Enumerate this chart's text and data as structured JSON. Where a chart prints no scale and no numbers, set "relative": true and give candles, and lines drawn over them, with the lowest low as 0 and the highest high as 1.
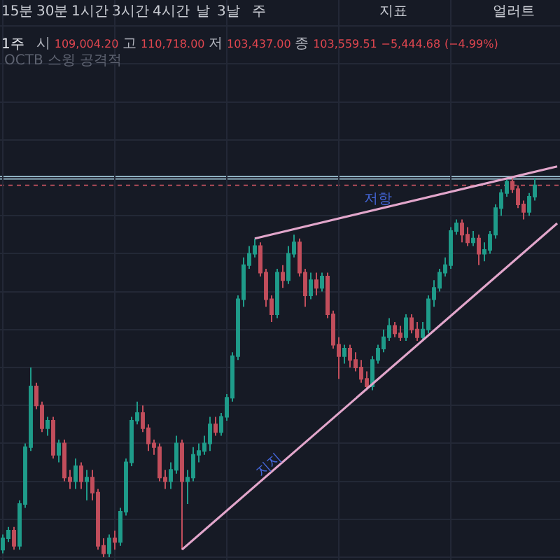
{
  "chart_data": {
    "type": "candlestick",
    "title": "1주",
    "subtitle": "시 109,004.20 고 110,718.00 저 103,437.00 종 103,559.51 −5,444.68 (−4.99%)",
    "annotations": [
      "15분",
      "30분",
      "1시간",
      "3시간",
      "4시간",
      "날",
      "3날",
      "주",
      "지표",
      "얼러트",
      "OCTB 스윙 공격적",
      "저항",
      "지지"
    ],
    "categories": [
      null,
      null,
      null,
      null,
      null,
      null,
      null,
      null,
      null,
      null,
      null,
      null,
      null,
      null,
      null,
      null,
      null,
      null,
      null,
      null,
      null,
      null,
      null,
      null,
      null,
      null,
      null,
      null,
      null,
      null,
      null,
      null,
      null,
      null,
      null,
      null,
      null,
      null,
      null,
      null,
      null,
      null,
      null,
      null,
      null,
      null,
      null,
      null,
      null,
      null,
      null,
      null,
      null,
      null,
      null,
      null,
      null,
      null,
      null,
      null,
      null,
      null,
      null,
      null,
      null,
      null,
      null,
      null,
      null,
      null,
      null,
      null,
      null,
      null,
      null,
      null,
      null,
      null,
      null,
      null,
      null,
      null,
      null,
      null,
      null,
      null,
      null,
      null,
      null,
      null,
      null,
      null,
      null,
      null,
      null,
      null,
      null,
      null,
      null,
      null
    ],
    "ohlc": [
      [
        0.02,
        0.06,
        0.01,
        0.05
      ],
      [
        0.05,
        0.08,
        0.04,
        0.07
      ],
      [
        0.07,
        0.08,
        0.02,
        0.03
      ],
      [
        0.03,
        0.15,
        0.02,
        0.14
      ],
      [
        0.14,
        0.3,
        0.13,
        0.29
      ],
      [
        0.29,
        0.5,
        0.28,
        0.45
      ],
      [
        0.45,
        0.46,
        0.39,
        0.4
      ],
      [
        0.4,
        0.41,
        0.33,
        0.34
      ],
      [
        0.34,
        0.37,
        0.32,
        0.36
      ],
      [
        0.36,
        0.37,
        0.26,
        0.27
      ],
      [
        0.27,
        0.31,
        0.25,
        0.3
      ],
      [
        0.3,
        0.31,
        0.2,
        0.21
      ],
      [
        0.21,
        0.23,
        0.18,
        0.2
      ],
      [
        0.2,
        0.26,
        0.18,
        0.24
      ],
      [
        0.24,
        0.25,
        0.18,
        0.2
      ],
      [
        0.2,
        0.23,
        0.15,
        0.21
      ],
      [
        0.21,
        0.23,
        0.15,
        0.17
      ],
      [
        0.17,
        0.18,
        0.02,
        0.03
      ],
      [
        0.03,
        0.05,
        0.0,
        0.01
      ],
      [
        0.01,
        0.06,
        0.0,
        0.05
      ],
      [
        0.05,
        0.07,
        0.02,
        0.04
      ],
      [
        0.04,
        0.13,
        0.03,
        0.12
      ],
      [
        0.12,
        0.26,
        0.11,
        0.25
      ],
      [
        0.25,
        0.37,
        0.24,
        0.36
      ],
      [
        0.36,
        0.41,
        0.35,
        0.38
      ],
      [
        0.38,
        0.4,
        0.33,
        0.34
      ],
      [
        0.34,
        0.35,
        0.28,
        0.3
      ],
      [
        0.3,
        0.31,
        0.27,
        0.29
      ],
      [
        0.29,
        0.3,
        0.2,
        0.21
      ],
      [
        0.21,
        0.23,
        0.18,
        0.2
      ],
      [
        0.2,
        0.25,
        0.18,
        0.23
      ],
      [
        0.23,
        0.32,
        0.22,
        0.3
      ],
      [
        0.3,
        0.31,
        0.02,
        0.2
      ],
      [
        0.2,
        0.23,
        0.14,
        0.21
      ],
      [
        0.21,
        0.29,
        0.2,
        0.27
      ],
      [
        0.27,
        0.3,
        0.25,
        0.28
      ],
      [
        0.28,
        0.32,
        0.27,
        0.3
      ],
      [
        0.3,
        0.37,
        0.28,
        0.35
      ],
      [
        0.35,
        0.37,
        0.32,
        0.33
      ],
      [
        0.33,
        0.38,
        0.32,
        0.37
      ],
      [
        0.37,
        0.43,
        0.36,
        0.42
      ],
      [
        0.42,
        0.54,
        0.41,
        0.53
      ],
      [
        0.53,
        0.69,
        0.52,
        0.68
      ],
      [
        0.68,
        0.79,
        0.66,
        0.77
      ],
      [
        0.77,
        0.82,
        0.76,
        0.8
      ],
      [
        0.8,
        0.84,
        0.79,
        0.82
      ],
      [
        0.82,
        0.83,
        0.74,
        0.75
      ],
      [
        0.75,
        0.76,
        0.66,
        0.68
      ],
      [
        0.68,
        0.69,
        0.62,
        0.64
      ],
      [
        0.64,
        0.76,
        0.63,
        0.75
      ],
      [
        0.75,
        0.77,
        0.71,
        0.73
      ],
      [
        0.73,
        0.82,
        0.72,
        0.8
      ],
      [
        0.8,
        0.85,
        0.79,
        0.83
      ],
      [
        0.83,
        0.84,
        0.74,
        0.75
      ],
      [
        0.75,
        0.76,
        0.66,
        0.69
      ],
      [
        0.69,
        0.75,
        0.68,
        0.73
      ],
      [
        0.73,
        0.75,
        0.69,
        0.71
      ],
      [
        0.71,
        0.75,
        0.7,
        0.74
      ],
      [
        0.74,
        0.75,
        0.63,
        0.64
      ],
      [
        0.64,
        0.65,
        0.55,
        0.56
      ],
      [
        0.56,
        0.58,
        0.47,
        0.53
      ],
      [
        0.53,
        0.56,
        0.51,
        0.55
      ],
      [
        0.55,
        0.56,
        0.5,
        0.52
      ],
      [
        0.52,
        0.54,
        0.49,
        0.5
      ],
      [
        0.5,
        0.52,
        0.46,
        0.47
      ],
      [
        0.47,
        0.49,
        0.44,
        0.45
      ],
      [
        0.45,
        0.53,
        0.44,
        0.52
      ],
      [
        0.52,
        0.56,
        0.51,
        0.55
      ],
      [
        0.55,
        0.6,
        0.54,
        0.58
      ],
      [
        0.58,
        0.63,
        0.57,
        0.61
      ],
      [
        0.61,
        0.62,
        0.58,
        0.59
      ],
      [
        0.59,
        0.61,
        0.57,
        0.58
      ],
      [
        0.58,
        0.64,
        0.57,
        0.63
      ],
      [
        0.63,
        0.64,
        0.59,
        0.6
      ],
      [
        0.6,
        0.62,
        0.57,
        0.58
      ],
      [
        0.58,
        0.62,
        0.57,
        0.6
      ],
      [
        0.6,
        0.69,
        0.59,
        0.68
      ],
      [
        0.68,
        0.73,
        0.66,
        0.71
      ],
      [
        0.71,
        0.76,
        0.7,
        0.75
      ],
      [
        0.75,
        0.79,
        0.74,
        0.77
      ],
      [
        0.77,
        0.87,
        0.76,
        0.86
      ],
      [
        0.86,
        0.89,
        0.85,
        0.88
      ],
      [
        0.88,
        0.89,
        0.83,
        0.85
      ],
      [
        0.85,
        0.87,
        0.82,
        0.83
      ],
      [
        0.83,
        0.86,
        0.82,
        0.84
      ],
      [
        0.84,
        0.85,
        0.77,
        0.8
      ],
      [
        0.8,
        0.83,
        0.78,
        0.81
      ],
      [
        0.81,
        0.86,
        0.8,
        0.85
      ],
      [
        0.85,
        0.93,
        0.84,
        0.92
      ],
      [
        0.92,
        0.97,
        0.9,
        0.96
      ],
      [
        0.96,
        1.0,
        0.95,
        0.99
      ],
      [
        0.99,
        1.0,
        0.96,
        0.97
      ],
      [
        0.97,
        0.98,
        0.92,
        0.93
      ],
      [
        0.93,
        0.94,
        0.89,
        0.91
      ],
      [
        0.91,
        0.96,
        0.9,
        0.95
      ],
      [
        0.95,
        1.0,
        0.94,
        0.98
      ],
      null,
      null,
      null,
      null
    ],
    "colors": [
      "#1f9c8a",
      "#1f9c8a",
      "#c24e5c",
      "#1f9c8a",
      "#1f9c8a",
      "#1f9c8a",
      "#c24e5c",
      "#c24e5c",
      "#1f9c8a",
      "#c24e5c",
      "#1f9c8a",
      "#c24e5c",
      "#c24e5c",
      "#1f9c8a",
      "#c24e5c",
      "#1f9c8a",
      "#c24e5c",
      "#c24e5c",
      "#c24e5c",
      "#1f9c8a",
      "#c24e5c",
      "#1f9c8a",
      "#1f9c8a",
      "#1f9c8a",
      "#1f9c8a",
      "#c24e5c",
      "#c24e5c",
      "#c24e5c",
      "#c24e5c",
      "#c24e5c",
      "#1f9c8a",
      "#1f9c8a",
      "#c24e5c",
      "#1f9c8a",
      "#1f9c8a",
      "#1f9c8a",
      "#1f9c8a",
      "#1f9c8a",
      "#c24e5c",
      "#1f9c8a",
      "#1f9c8a",
      "#1f9c8a",
      "#1f9c8a",
      "#1f9c8a",
      "#1f9c8a",
      "#1f9c8a",
      "#c24e5c",
      "#c24e5c",
      "#c24e5c",
      "#1f9c8a",
      "#c24e5c",
      "#1f9c8a",
      "#1f9c8a",
      "#c24e5c",
      "#c24e5c",
      "#1f9c8a",
      "#c24e5c",
      "#1f9c8a",
      "#c24e5c",
      "#c24e5c",
      "#c24e5c",
      "#1f9c8a",
      "#c24e5c",
      "#c24e5c",
      "#c24e5c",
      "#c24e5c",
      "#1f9c8a",
      "#1f9c8a",
      "#1f9c8a",
      "#1f9c8a",
      "#c24e5c",
      "#c24e5c",
      "#1f9c8a",
      "#c24e5c",
      "#c24e5c",
      "#1f9c8a",
      "#1f9c8a",
      "#1f9c8a",
      "#1f9c8a",
      "#1f9c8a",
      "#1f9c8a",
      "#1f9c8a",
      "#c24e5c",
      "#c24e5c",
      "#1f9c8a",
      "#c24e5c",
      "#1f9c8a",
      "#1f9c8a",
      "#1f9c8a",
      "#1f9c8a",
      "#1f9c8a",
      "#c24e5c",
      "#c24e5c",
      "#c24e5c",
      "#1f9c8a",
      "#1f9c8a",
      null,
      null,
      null,
      null
    ],
    "series": [
      {
        "type": "line",
        "color": "#e2a6cb",
        "values": [
          null,
          null,
          null,
          null,
          null,
          null,
          null,
          null,
          null,
          null,
          null,
          null,
          null,
          null,
          null,
          null,
          null,
          null,
          null,
          null,
          null,
          null,
          null,
          null,
          null,
          null,
          null,
          null,
          null,
          null,
          null,
          null,
          null,
          null,
          null,
          null,
          null,
          null,
          null,
          null,
          null,
          null,
          null,
          null,
          null,
          0.84,
          null,
          null,
          null,
          null,
          null,
          null,
          null,
          null,
          null,
          null,
          null,
          null,
          null,
          null,
          null,
          null,
          null,
          null,
          null,
          null,
          null,
          null,
          null,
          null,
          null,
          null,
          null,
          null,
          null,
          null,
          null,
          null,
          null,
          null,
          null,
          null,
          null,
          null,
          null,
          null,
          null,
          null,
          null,
          null,
          null,
          null,
          null,
          null,
          null,
          null,
          null,
          null,
          null,
          1.03
        ]
      },
      {
        "type": "line",
        "color": "#e2a6cb",
        "values": [
          null,
          null,
          null,
          null,
          null,
          null,
          null,
          null,
          null,
          null,
          null,
          null,
          null,
          null,
          null,
          null,
          null,
          null,
          null,
          null,
          null,
          null,
          null,
          null,
          null,
          null,
          null,
          null,
          null,
          null,
          null,
          null,
          0.02,
          null,
          null,
          null,
          null,
          null,
          null,
          null,
          null,
          null,
          null,
          null,
          null,
          null,
          null,
          null,
          null,
          null,
          null,
          null,
          null,
          null,
          null,
          null,
          null,
          null,
          null,
          null,
          null,
          null,
          null,
          null,
          null,
          null,
          null,
          null,
          null,
          null,
          null,
          null,
          null,
          null,
          null,
          null,
          null,
          null,
          null,
          null,
          null,
          null,
          null,
          null,
          null,
          null,
          null,
          null,
          null,
          null,
          null,
          null,
          null,
          null,
          null,
          null,
          null,
          null,
          null,
          0.88
        ]
      }
    ],
    "ref_lines": [
      {
        "axis": "y",
        "value": 1.0,
        "color": "#a9d2e3"
      },
      {
        "axis": "y",
        "value": 0.98,
        "color": "#b24d5a",
        "line_style": "dotted"
      }
    ],
    "relative": true,
    "grid": true,
    "tick_labels": false
  }
}
